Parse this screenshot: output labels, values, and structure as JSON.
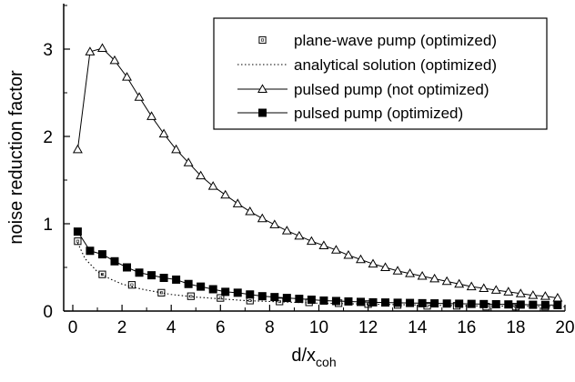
{
  "chart_data": {
    "type": "line",
    "xlabel": "d/x",
    "xlabel_sub": "coh",
    "ylabel": "noise reduction factor",
    "xlim": [
      0,
      20
    ],
    "ylim": [
      0,
      3.5
    ],
    "x_ticks": [
      "0",
      "2",
      "4",
      "6",
      "8",
      "10",
      "12",
      "14",
      "16",
      "18",
      "20"
    ],
    "y_ticks": [
      "0",
      "1",
      "2",
      "3"
    ],
    "legend_position": "top-right",
    "series": [
      {
        "name": "plane-wave pump (optimized)",
        "marker": "open-square",
        "line": "none",
        "x": [
          0.2,
          1.2,
          2.4,
          3.6,
          4.8,
          6.0,
          7.2,
          8.4,
          9.6,
          10.8,
          12.0,
          13.2,
          14.4,
          15.6,
          16.8,
          18.0,
          19.2
        ],
        "y": [
          0.8,
          0.42,
          0.3,
          0.21,
          0.17,
          0.15,
          0.12,
          0.11,
          0.1,
          0.09,
          0.08,
          0.07,
          0.06,
          0.06,
          0.05,
          0.05,
          0.05
        ]
      },
      {
        "name": "analytical solution (optimized)",
        "marker": "none",
        "line": "dotted",
        "x": [
          0.2,
          0.5,
          1.0,
          1.5,
          2.0,
          2.5,
          3.0,
          4.0,
          5.0,
          6.0,
          7.0,
          8.0,
          9.0,
          10.0,
          11.0,
          12.0,
          13.0,
          14.0,
          15.0,
          16.0,
          17.0,
          18.0,
          19.0,
          20.0
        ],
        "y": [
          0.78,
          0.6,
          0.45,
          0.37,
          0.31,
          0.27,
          0.24,
          0.19,
          0.16,
          0.14,
          0.12,
          0.11,
          0.1,
          0.09,
          0.085,
          0.08,
          0.075,
          0.07,
          0.065,
          0.06,
          0.058,
          0.055,
          0.052,
          0.05
        ]
      },
      {
        "name": "pulsed pump (not optimized)",
        "marker": "open-triangle",
        "line": "solid",
        "x": [
          0.2,
          0.7,
          1.2,
          1.7,
          2.2,
          2.7,
          3.2,
          3.7,
          4.2,
          4.7,
          5.2,
          5.7,
          6.2,
          6.7,
          7.2,
          7.7,
          8.2,
          8.7,
          9.2,
          9.7,
          10.2,
          10.7,
          11.2,
          11.7,
          12.2,
          12.7,
          13.2,
          13.7,
          14.2,
          14.7,
          15.2,
          15.7,
          16.2,
          16.7,
          17.2,
          17.7,
          18.2,
          18.7,
          19.2,
          19.7
        ],
        "y": [
          1.85,
          2.97,
          3.01,
          2.87,
          2.68,
          2.45,
          2.23,
          2.03,
          1.85,
          1.7,
          1.55,
          1.43,
          1.33,
          1.23,
          1.14,
          1.06,
          0.99,
          0.92,
          0.86,
          0.8,
          0.75,
          0.7,
          0.64,
          0.59,
          0.54,
          0.5,
          0.46,
          0.43,
          0.4,
          0.37,
          0.34,
          0.31,
          0.28,
          0.26,
          0.24,
          0.22,
          0.2,
          0.18,
          0.17,
          0.15
        ]
      },
      {
        "name": "pulsed pump (optimized)",
        "marker": "filled-square",
        "line": "solid",
        "x": [
          0.2,
          0.7,
          1.2,
          1.7,
          2.2,
          2.7,
          3.2,
          3.7,
          4.2,
          4.7,
          5.2,
          5.7,
          6.2,
          6.7,
          7.2,
          7.7,
          8.2,
          8.7,
          9.2,
          9.7,
          10.2,
          10.7,
          11.2,
          11.7,
          12.2,
          12.7,
          13.2,
          13.7,
          14.2,
          14.7,
          15.2,
          15.7,
          16.2,
          16.7,
          17.2,
          17.7,
          18.2,
          18.7,
          19.2,
          19.7
        ],
        "y": [
          0.91,
          0.69,
          0.65,
          0.57,
          0.5,
          0.44,
          0.41,
          0.38,
          0.36,
          0.31,
          0.28,
          0.25,
          0.22,
          0.21,
          0.19,
          0.17,
          0.16,
          0.15,
          0.14,
          0.13,
          0.12,
          0.115,
          0.11,
          0.105,
          0.1,
          0.098,
          0.095,
          0.093,
          0.09,
          0.088,
          0.086,
          0.084,
          0.082,
          0.08,
          0.078,
          0.076,
          0.074,
          0.072,
          0.07,
          0.068
        ]
      }
    ]
  }
}
